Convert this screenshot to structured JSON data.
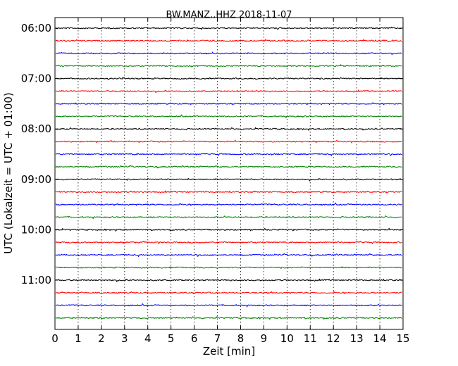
{
  "chart_data": {
    "type": "line",
    "title": "BW.MANZ..HHZ 2018-11-07",
    "xlabel": "Zeit  [min]",
    "ylabel": "UTC (Lokalzeit = UTC + 01:00)",
    "xlim": [
      0,
      15
    ],
    "x_ticks": [
      "0",
      "1",
      "2",
      "3",
      "4",
      "5",
      "6",
      "7",
      "8",
      "9",
      "10",
      "11",
      "12",
      "13",
      "14",
      "15"
    ],
    "y_tick_labels": [
      "06:00",
      "07:00",
      "08:00",
      "09:00",
      "10:00",
      "11:00"
    ],
    "grid": "vertical dotted at each minute",
    "trace_colors": [
      "#000000",
      "#ff0000",
      "#0000ff",
      "#008000"
    ],
    "traces": [
      {
        "start": "06:00"
      },
      {
        "start": "06:15"
      },
      {
        "start": "06:30"
      },
      {
        "start": "06:45"
      },
      {
        "start": "07:00"
      },
      {
        "start": "07:15"
      },
      {
        "start": "07:30"
      },
      {
        "start": "07:45"
      },
      {
        "start": "08:00"
      },
      {
        "start": "08:15"
      },
      {
        "start": "08:30"
      },
      {
        "start": "08:45"
      },
      {
        "start": "09:00"
      },
      {
        "start": "09:15"
      },
      {
        "start": "09:30"
      },
      {
        "start": "09:45"
      },
      {
        "start": "10:00"
      },
      {
        "start": "10:15"
      },
      {
        "start": "10:30"
      },
      {
        "start": "10:45"
      },
      {
        "start": "11:00"
      },
      {
        "start": "11:15"
      },
      {
        "start": "11:30"
      },
      {
        "start": "11:45"
      }
    ]
  }
}
